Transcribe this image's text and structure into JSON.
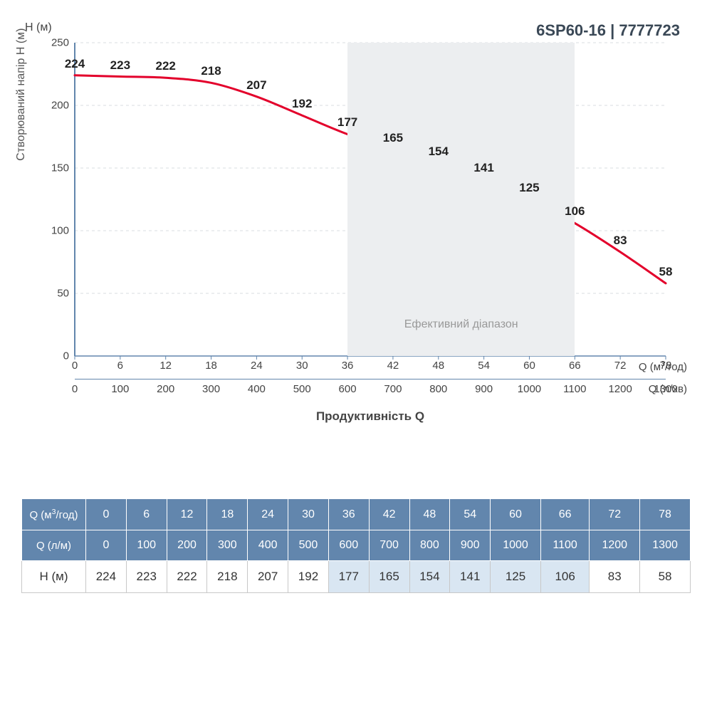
{
  "header": {
    "title": "6SP60-16 | 7777723"
  },
  "chart": {
    "type": "line",
    "y_axis": {
      "unit_label": "H (м)",
      "axis_label": "Створюваний напір Н (м)",
      "min": 0,
      "max": 250,
      "tick_step": 50,
      "ticks": [
        0,
        50,
        100,
        150,
        200,
        250
      ]
    },
    "x_axis_1": {
      "unit_label": "Q (м³/год)",
      "ticks": [
        0,
        6,
        12,
        18,
        24,
        30,
        36,
        42,
        48,
        54,
        60,
        66,
        72,
        78
      ]
    },
    "x_axis_2": {
      "unit_label": "Q (л/хв)",
      "ticks": [
        0,
        100,
        200,
        300,
        400,
        500,
        600,
        700,
        800,
        900,
        1000,
        1100,
        1200,
        1300
      ]
    },
    "x_axis_label": "Продуктивність Q",
    "effective_range": {
      "label": "Ефективний діапазон",
      "x_start": 36,
      "x_end": 66
    },
    "series": {
      "color": "#e3002b",
      "line_width": 3,
      "x": [
        0,
        6,
        12,
        18,
        24,
        30,
        36,
        42,
        48,
        54,
        60,
        66,
        72,
        78
      ],
      "y": [
        224,
        223,
        222,
        218,
        207,
        192,
        177,
        165,
        154,
        141,
        125,
        106,
        83,
        58
      ]
    },
    "colors": {
      "axis": "#6286ad",
      "grid": "#d8dce0",
      "text": "#444444",
      "label_text": "#222222",
      "shade": "#eceef0"
    },
    "label_fontsize": 17,
    "tick_fontsize": 15
  },
  "table": {
    "highlight_range": {
      "start_index": 6,
      "end_index": 11
    },
    "highlight_color": "#d9e6f2",
    "header_bg": "#6286ad",
    "header_color": "#ffffff",
    "rows": [
      {
        "label": "Q (м³/год)",
        "label_html": "Q (м<sup>3</sup>/год)",
        "values": [
          0,
          6,
          12,
          18,
          24,
          30,
          36,
          42,
          48,
          54,
          60,
          66,
          72,
          78
        ],
        "is_header": true
      },
      {
        "label": "Q (л/м)",
        "values": [
          0,
          100,
          200,
          300,
          400,
          500,
          600,
          700,
          800,
          900,
          1000,
          1100,
          1200,
          1300
        ],
        "is_header": true
      },
      {
        "label": "H (м)",
        "values": [
          224,
          223,
          222,
          218,
          207,
          192,
          177,
          165,
          154,
          141,
          125,
          106,
          83,
          58
        ],
        "is_header": false
      }
    ]
  }
}
